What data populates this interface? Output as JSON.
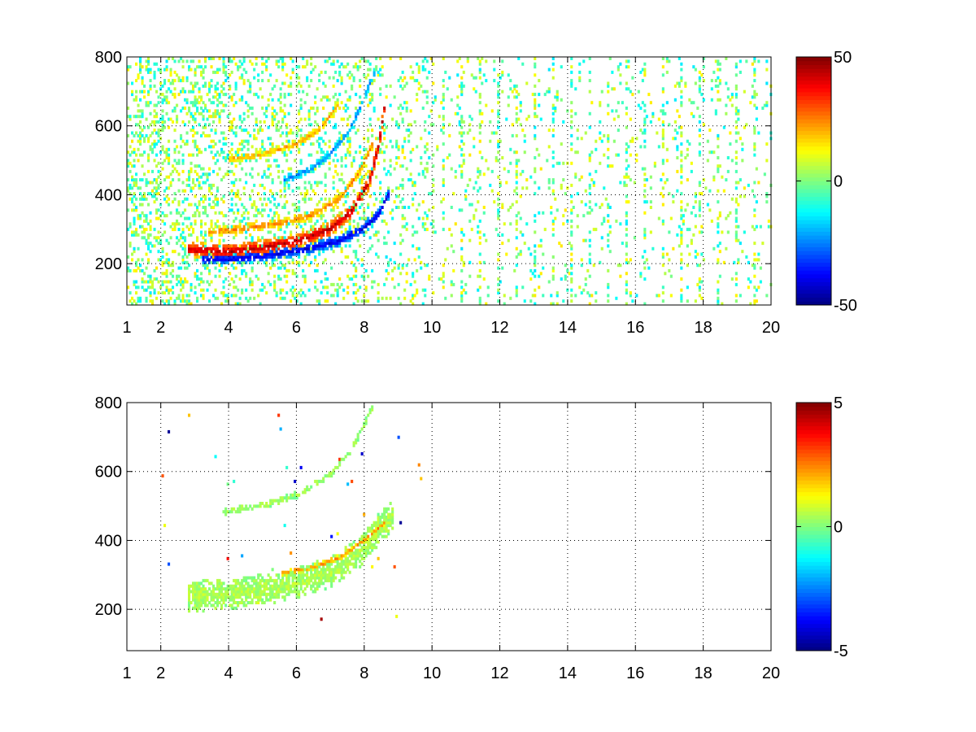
{
  "chart_data": [
    {
      "type": "heatmap",
      "title": "",
      "xlabel": "",
      "ylabel": "",
      "xlim": [
        1,
        20
      ],
      "ylim": [
        80,
        800
      ],
      "x_ticks": [
        1,
        2,
        4,
        6,
        8,
        10,
        12,
        14,
        16,
        18,
        20
      ],
      "y_ticks": [
        200,
        400,
        600,
        800
      ],
      "grid": true,
      "colormap": "jet",
      "colorbar": {
        "min": -50,
        "max": 50,
        "ticks": [
          50,
          0,
          -50
        ],
        "position": "right"
      },
      "tick_labels": {
        "x": [
          "1",
          "2",
          "4",
          "6",
          "8",
          "10",
          "12",
          "14",
          "16",
          "18",
          "20"
        ],
        "y": [
          "800",
          "600",
          "400",
          "200"
        ],
        "colorbar": [
          "50",
          "0",
          "-50"
        ]
      },
      "features": [
        {
          "kind": "curve",
          "points": [
            [
              2.8,
              238
            ],
            [
              4,
              232
            ],
            [
              5,
              245
            ],
            [
              6,
              262
            ],
            [
              7,
              300
            ],
            [
              7.6,
              350
            ],
            [
              8.1,
              430
            ],
            [
              8.4,
              540
            ],
            [
              8.6,
              680
            ]
          ],
          "value": 45,
          "spread": 22
        },
        {
          "kind": "curve",
          "points": [
            [
              3.2,
              210
            ],
            [
              4.2,
              212
            ],
            [
              5.2,
              222
            ],
            [
              6.2,
              238
            ],
            [
              7.2,
              262
            ],
            [
              7.9,
              295
            ],
            [
              8.4,
              340
            ],
            [
              8.7,
              400
            ]
          ],
          "value": -42,
          "spread": 18
        },
        {
          "kind": "curve",
          "points": [
            [
              3.4,
              290
            ],
            [
              4.5,
              300
            ],
            [
              5.5,
              315
            ],
            [
              6.5,
              340
            ],
            [
              7.3,
              390
            ],
            [
              7.8,
              460
            ],
            [
              8.2,
              540
            ]
          ],
          "value": 25,
          "spread": 14
        },
        {
          "kind": "curve",
          "points": [
            [
              5.6,
              440
            ],
            [
              6.4,
              470
            ],
            [
              7.0,
              520
            ],
            [
              7.5,
              580
            ],
            [
              7.9,
              660
            ],
            [
              8.3,
              760
            ]
          ],
          "value": -25,
          "spread": 12
        },
        {
          "kind": "curve",
          "points": [
            [
              4.0,
              500
            ],
            [
              5.0,
              515
            ],
            [
              6.0,
              545
            ],
            [
              6.7,
              590
            ],
            [
              7.2,
              660
            ]
          ],
          "value": 22,
          "spread": 10
        }
      ],
      "speckle": {
        "x_range": [
          1,
          20
        ],
        "y_range": [
          80,
          800
        ],
        "value_range": [
          -15,
          15
        ],
        "density": "dense left of 10, sparse vertical streaks right of 10"
      }
    },
    {
      "type": "heatmap",
      "title": "",
      "xlabel": "",
      "ylabel": "",
      "xlim": [
        1,
        20
      ],
      "ylim": [
        80,
        800
      ],
      "x_ticks": [
        1,
        2,
        4,
        6,
        8,
        10,
        12,
        14,
        16,
        18,
        20
      ],
      "y_ticks": [
        200,
        400,
        600,
        800
      ],
      "grid": true,
      "colormap": "jet",
      "colorbar": {
        "min": -5,
        "max": 5,
        "ticks": [
          5,
          0,
          -5
        ],
        "position": "right"
      },
      "tick_labels": {
        "x": [
          "1",
          "2",
          "4",
          "6",
          "8",
          "10",
          "12",
          "14",
          "16",
          "18",
          "20"
        ],
        "y": [
          "800",
          "600",
          "400",
          "200"
        ],
        "colorbar": [
          "5",
          "0",
          "-5"
        ]
      },
      "features": [
        {
          "kind": "band",
          "points": [
            [
              2.8,
              235
            ],
            [
              4,
              240
            ],
            [
              5,
              255
            ],
            [
              6,
              272
            ],
            [
              7,
              305
            ],
            [
              7.8,
              360
            ],
            [
              8.4,
              430
            ],
            [
              8.8,
              470
            ]
          ],
          "value": 0.5,
          "spread": 45
        },
        {
          "kind": "band",
          "points": [
            [
              3.8,
              480
            ],
            [
              5,
              500
            ],
            [
              6,
              530
            ],
            [
              7,
              590
            ],
            [
              7.6,
              660
            ],
            [
              8.2,
              780
            ]
          ],
          "value": 0.3,
          "spread": 10
        },
        {
          "kind": "band",
          "points": [
            [
              5.5,
              300
            ],
            [
              6.5,
              320
            ],
            [
              7.3,
              350
            ],
            [
              8.0,
              400
            ],
            [
              8.6,
              450
            ]
          ],
          "value": 2.5,
          "spread": 8
        }
      ],
      "speckle": {
        "x_range": [
          2,
          10.5
        ],
        "y_range": [
          150,
          780
        ],
        "value_range": [
          -5,
          5
        ],
        "density": "sparse"
      }
    }
  ]
}
